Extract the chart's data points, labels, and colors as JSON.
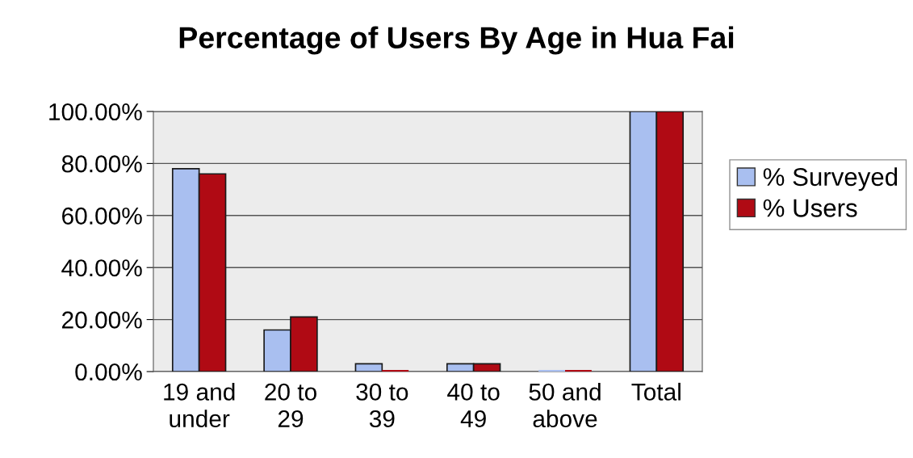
{
  "chart_data": {
    "type": "bar",
    "title": "Percentage of Users By Age in Hua Fai",
    "categories": [
      "19 and\nunder",
      "20 to\n29",
      "30 to\n39",
      "40 to\n49",
      "50 and\nabove",
      "Total"
    ],
    "series": [
      {
        "name": "% Surveyed",
        "color": "#a9bff0",
        "values": [
          78,
          16,
          3,
          3,
          0,
          100
        ]
      },
      {
        "name": "% Users",
        "color": "#b00a14",
        "values": [
          76,
          21,
          0,
          3,
          0,
          100
        ]
      }
    ],
    "ylim": [
      0,
      100
    ],
    "yticks": [
      {
        "value": 0,
        "label": "0.00%"
      },
      {
        "value": 20,
        "label": "20.00%"
      },
      {
        "value": 40,
        "label": "40.00%"
      },
      {
        "value": 60,
        "label": "60.00%"
      },
      {
        "value": 80,
        "label": "80.00%"
      },
      {
        "value": 100,
        "label": "100.00%"
      }
    ],
    "grid": "y",
    "legend": "right"
  }
}
